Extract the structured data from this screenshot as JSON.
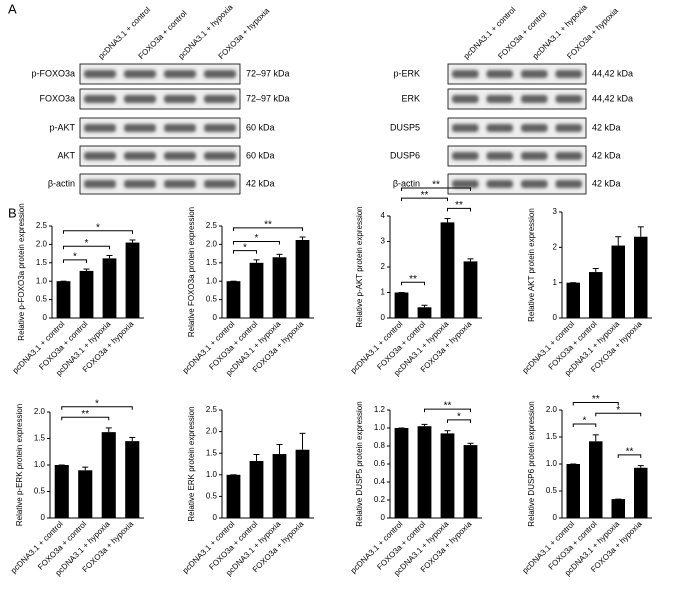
{
  "panels": [
    "A",
    "B"
  ],
  "blots": [
    {
      "columns": [
        "pcDNA3.1 + control",
        "FOXO3a + control",
        "pcDNA3.1 + hypoxia",
        "FOXO3a + hypoxia"
      ],
      "rows": [
        {
          "protein": "p-FOXO3a",
          "size": "72–97 kDa"
        },
        {
          "protein": "FOXO3a",
          "size": "72–97 kDa"
        },
        {
          "protein": "p-AKT",
          "size": "60 kDa"
        },
        {
          "protein": "AKT",
          "size": "60 kDa"
        },
        {
          "protein": "β-actin",
          "size": "42 kDa"
        }
      ]
    },
    {
      "columns": [
        "pcDNA3.1 + control",
        "FOXO3a + control",
        "pcDNA3.1 + hypoxia",
        "FOXO3a + hypoxia"
      ],
      "rows": [
        {
          "protein": "p-ERK",
          "size": "44,42 kDa"
        },
        {
          "protein": "ERK",
          "size": "44,42 kDa"
        },
        {
          "protein": "DUSP5",
          "size": "42 kDa"
        },
        {
          "protein": "DUSP6",
          "size": "42 kDa"
        },
        {
          "protein": "β-actin",
          "size": "42 kDa"
        }
      ]
    }
  ],
  "chart_data": [
    {
      "type": "bar",
      "y_label": "Relative p-FOXO3a protein expression",
      "color": "#000000",
      "categories": [
        "pcDNA3.1 + control",
        "FOXO3a + control",
        "pcDNA3.1 + hypoxia",
        "FOXO3a + hypoxia"
      ],
      "values": [
        1.0,
        1.28,
        1.62,
        2.05
      ],
      "errors": [
        0,
        0.05,
        0.08,
        0.07
      ],
      "ylim": [
        0,
        2.5
      ],
      "yticks": [
        0,
        0.5,
        {
          "value": 1,
          "label": "1.0"
        },
        1.5,
        {
          "value": 2,
          "label": "2.0"
        },
        2.5
      ],
      "annotations": [
        {
          "text": "*",
          "pair": [
            0,
            1
          ]
        },
        {
          "text": "*",
          "pair": [
            0,
            2
          ]
        },
        {
          "text": "*",
          "pair": [
            0,
            3
          ]
        }
      ]
    },
    {
      "type": "bar",
      "y_label": "Relative FOXO3a protein expression",
      "color": "#000000",
      "categories": [
        "pcDNA3.1 + control",
        "FOXO3a + control",
        "pcDNA3.1 + hypoxia",
        "FOXO3a + hypoxia"
      ],
      "values": [
        1.0,
        1.5,
        1.65,
        2.12
      ],
      "errors": [
        0,
        0.08,
        0.08,
        0.08
      ],
      "ylim": [
        0,
        2.5
      ],
      "yticks": [
        0,
        0.5,
        {
          "value": 1,
          "label": "1.0"
        },
        1.5,
        {
          "value": 2,
          "label": "2.0"
        },
        2.5
      ],
      "annotations": [
        {
          "text": "*",
          "pair": [
            0,
            1
          ]
        },
        {
          "text": "*",
          "pair": [
            0,
            2
          ]
        },
        {
          "text": "**",
          "pair": [
            0,
            3
          ]
        }
      ]
    },
    {
      "type": "bar",
      "y_label": "Relative p-AKT protein expression",
      "color": "#000000",
      "categories": [
        "pcDNA3.1 + control",
        "FOXO3a + control",
        "pcDNA3.1 + hypoxia",
        "FOXO3a + hypoxia"
      ],
      "values": [
        1.0,
        0.42,
        3.75,
        2.22
      ],
      "errors": [
        0,
        0.08,
        0.15,
        0.1
      ],
      "ylim": [
        0,
        4
      ],
      "yticks": [
        0,
        1,
        2,
        3,
        4
      ],
      "annotations": [
        {
          "text": "**",
          "pair": [
            0,
            1
          ]
        },
        {
          "text": "**",
          "pair": [
            2,
            3
          ]
        },
        {
          "text": "**",
          "pair": [
            0,
            2
          ]
        },
        {
          "text": "**",
          "pair": [
            0,
            3
          ]
        }
      ]
    },
    {
      "type": "bar",
      "y_label": "Relative AKT protein expression",
      "color": "#000000",
      "categories": [
        "pcDNA3.1 + control",
        "FOXO3a + control",
        "pcDNA3.1 + hypoxia",
        "FOXO3a + hypoxia"
      ],
      "values": [
        1.0,
        1.3,
        2.05,
        2.3
      ],
      "errors": [
        0,
        0.1,
        0.25,
        0.28
      ],
      "ylim": [
        0,
        3
      ],
      "yticks": [
        0,
        1,
        2,
        3
      ],
      "annotations": []
    },
    {
      "type": "bar",
      "y_label": "Relative p-ERK protein expression",
      "color": "#000000",
      "categories": [
        "pcDNA3.1 + control",
        "FOXO3a + control",
        "pcDNA3.1 + hypoxia",
        "FOXO3a + hypoxia"
      ],
      "values": [
        1.0,
        0.9,
        1.62,
        1.45
      ],
      "errors": [
        0,
        0.06,
        0.08,
        0.07
      ],
      "ylim": [
        0,
        2
      ],
      "yticks": [
        0,
        0.5,
        {
          "value": 1,
          "label": "1.0"
        },
        1.5,
        {
          "value": 2,
          "label": "2.0"
        }
      ],
      "annotations": [
        {
          "text": "**",
          "pair": [
            0,
            2
          ]
        },
        {
          "text": "*",
          "pair": [
            0,
            3
          ]
        }
      ]
    },
    {
      "type": "bar",
      "y_label": "Relative ERK protein expression",
      "color": "#000000",
      "categories": [
        "pcDNA3.1 + control",
        "FOXO3a + control",
        "pcDNA3.1 + hypoxia",
        "FOXO3a + hypoxia"
      ],
      "values": [
        1.0,
        1.32,
        1.48,
        1.58
      ],
      "errors": [
        0,
        0.15,
        0.22,
        0.38
      ],
      "ylim": [
        0,
        2.5
      ],
      "yticks": [
        0,
        0.5,
        {
          "value": 1,
          "label": "1.0"
        },
        1.5,
        {
          "value": 2,
          "label": "2.0"
        },
        2.5
      ],
      "annotations": []
    },
    {
      "type": "bar",
      "y_label": "Relative DUSP5 protein expression",
      "color": "#000000",
      "categories": [
        "pcDNA3.1 + control",
        "FOXO3a + control",
        "pcDNA3.1 + hypoxia",
        "FOXO3a + hypoxia"
      ],
      "values": [
        1.0,
        1.02,
        0.94,
        0.81
      ],
      "errors": [
        0,
        0.02,
        0.03,
        0.02
      ],
      "ylim": [
        0,
        1.2
      ],
      "yticks": [
        0,
        0.2,
        0.4,
        0.6,
        0.8,
        {
          "value": 1,
          "label": "1.0"
        },
        1.2
      ],
      "annotations": [
        {
          "text": "*",
          "pair": [
            2,
            3
          ]
        },
        {
          "text": "**",
          "pair": [
            1,
            3
          ]
        }
      ]
    },
    {
      "type": "bar",
      "y_label": "Relative DUSP6 protein expression",
      "color": "#000000",
      "categories": [
        "pcDNA3.1 + control",
        "FOXO3a + control",
        "pcDNA3.1 + hypoxia",
        "FOXO3a + hypoxia"
      ],
      "values": [
        1.0,
        1.42,
        0.35,
        0.93
      ],
      "errors": [
        0,
        0.12,
        0,
        0.04
      ],
      "ylim": [
        0,
        2
      ],
      "yticks": [
        0,
        0.5,
        {
          "value": 1,
          "label": "1.0"
        },
        1.5,
        {
          "value": 2,
          "label": "2.0"
        }
      ],
      "annotations": [
        {
          "text": "**",
          "pair": [
            2,
            3
          ]
        },
        {
          "text": "*",
          "pair": [
            0,
            1
          ]
        },
        {
          "text": "*",
          "pair": [
            1,
            3
          ]
        },
        {
          "text": "**",
          "pair": [
            0,
            2
          ]
        }
      ]
    }
  ]
}
